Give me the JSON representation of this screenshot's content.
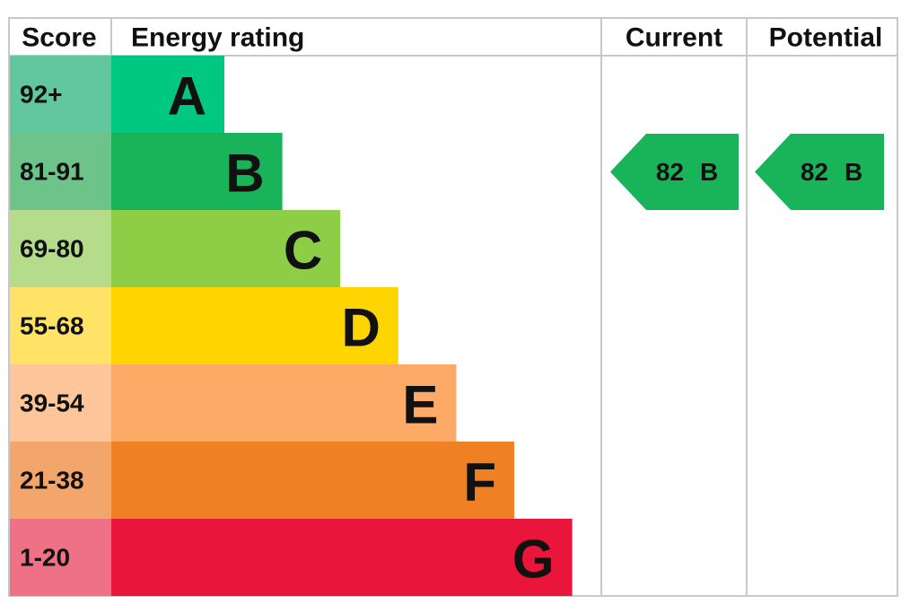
{
  "header": [
    "Score",
    "Energy rating",
    "Current",
    "Potential"
  ],
  "rows": [
    {
      "score": "92+",
      "band": "A",
      "color": "#00c781",
      "score_color": "#62c69f"
    },
    {
      "score": "81-91",
      "band": "B",
      "color": "#19b459",
      "score_color": "#6dc48b"
    },
    {
      "score": "69-80",
      "band": "C",
      "color": "#8dce46",
      "score_color": "#b4dc8a"
    },
    {
      "score": "55-68",
      "band": "D",
      "color": "#ffd500",
      "score_color": "#ffe366"
    },
    {
      "score": "39-54",
      "band": "E",
      "color": "#fcaa65",
      "score_color": "#fcc59a"
    },
    {
      "score": "21-38",
      "band": "F",
      "color": "#ef8023",
      "score_color": "#f2a66b"
    },
    {
      "score": "1-20",
      "band": "G",
      "color": "#e9153b",
      "score_color": "#ef7186"
    }
  ],
  "current": {
    "value": 82,
    "band": "B"
  },
  "potential": {
    "value": 82,
    "band": "B"
  }
}
